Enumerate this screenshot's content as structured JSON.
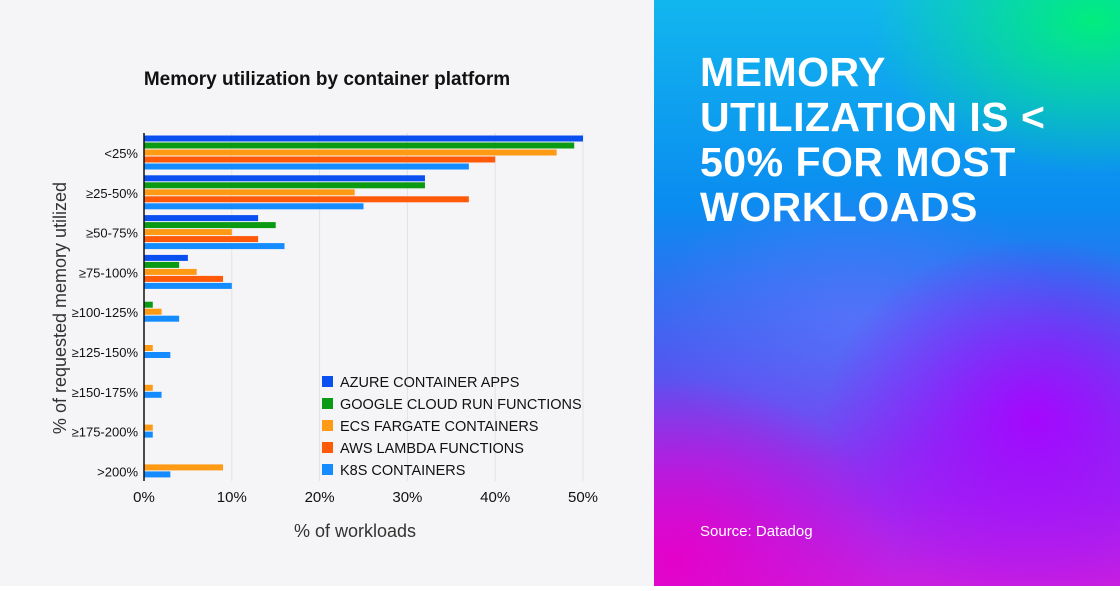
{
  "chart_data": {
    "type": "bar",
    "orientation": "horizontal",
    "title": "Memory utilization by container platform",
    "xlabel": "% of workloads",
    "ylabel": "% of requested memory utilized",
    "xlim": [
      0,
      50
    ],
    "xticks": [
      "0%",
      "10%",
      "20%",
      "30%",
      "40%",
      "50%"
    ],
    "grid": true,
    "legend_placement": "bottom-right",
    "categories": [
      "<25%",
      "≥25-50%",
      "≥50-75%",
      "≥75-100%",
      "≥100-125%",
      "≥125-150%",
      "≥150-175%",
      "≥175-200%",
      ">200%"
    ],
    "series": [
      {
        "name": "AZURE CONTAINER APPS",
        "color": "#0a50f0",
        "values": [
          50,
          32,
          13,
          5,
          0,
          0,
          0,
          0,
          0
        ]
      },
      {
        "name": "GOOGLE CLOUD RUN FUNCTIONS",
        "color": "#0a9a14",
        "values": [
          49,
          32,
          15,
          4,
          1,
          0,
          0,
          0,
          0
        ]
      },
      {
        "name": "ECS FARGATE CONTAINERS",
        "color": "#ff9a14",
        "values": [
          47,
          24,
          10,
          6,
          2,
          1,
          1,
          1,
          9
        ]
      },
      {
        "name": "AWS LAMBDA FUNCTIONS",
        "color": "#ff5a0a",
        "values": [
          40,
          37,
          13,
          9,
          0,
          0,
          0,
          0,
          0
        ]
      },
      {
        "name": "K8S CONTAINERS",
        "color": "#148cff",
        "values": [
          37,
          25,
          16,
          10,
          4,
          3,
          2,
          1,
          3
        ]
      }
    ]
  },
  "panel": {
    "headline": "MEMORY UTILIZATION IS < 50% FOR MOST WORKLOADS",
    "source": "Source: Datadog"
  }
}
